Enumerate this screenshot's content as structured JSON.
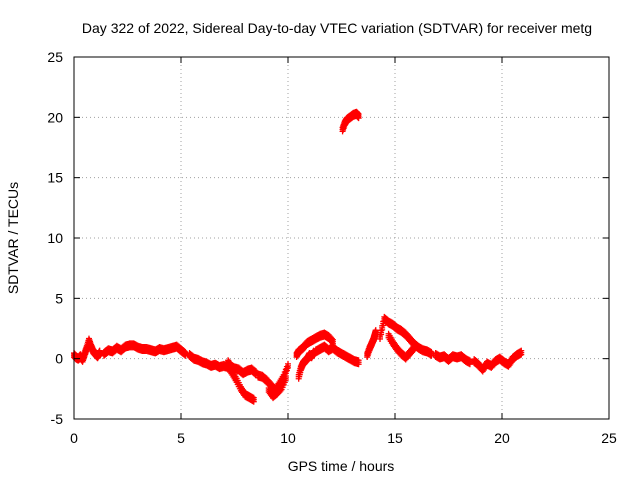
{
  "chart_data": {
    "type": "scatter",
    "title": "Day 322 of 2022, Sidereal Day-to-day VTEC variation (SDTVAR) for receiver metg",
    "xlabel": "GPS time / hours",
    "ylabel": "SDTVAR / TECUs",
    "xlim": [
      0,
      25
    ],
    "ylim": [
      -5,
      25
    ],
    "xticks": [
      "0",
      "5",
      "10",
      "15",
      "20",
      "25"
    ],
    "yticks": [
      "-5",
      "0",
      "5",
      "10",
      "15",
      "20",
      "25"
    ],
    "grid": true,
    "legend": null,
    "color": "#ff0000",
    "series": [
      {
        "name": "seg-0-1",
        "points": [
          [
            0.0,
            0.3
          ],
          [
            0.1,
            0.1
          ],
          [
            0.2,
            0.0
          ],
          [
            0.3,
            0.2
          ],
          [
            0.4,
            -0.1
          ],
          [
            0.5,
            0.4
          ],
          [
            0.6,
            0.9
          ],
          [
            0.7,
            1.5
          ],
          [
            0.8,
            1.0
          ],
          [
            0.9,
            0.6
          ],
          [
            1.0,
            0.4
          ],
          [
            1.1,
            0.2
          ],
          [
            1.2,
            0.5
          ]
        ]
      },
      {
        "name": "seg-1-5",
        "points": [
          [
            1.4,
            0.4
          ],
          [
            1.6,
            0.7
          ],
          [
            1.8,
            0.6
          ],
          [
            2.0,
            0.9
          ],
          [
            2.2,
            0.7
          ],
          [
            2.4,
            1.0
          ],
          [
            2.6,
            1.1
          ],
          [
            2.8,
            1.1
          ],
          [
            3.0,
            0.9
          ],
          [
            3.2,
            0.8
          ],
          [
            3.4,
            0.8
          ],
          [
            3.6,
            0.7
          ],
          [
            3.8,
            0.6
          ],
          [
            4.0,
            0.8
          ],
          [
            4.2,
            0.7
          ],
          [
            4.4,
            0.8
          ],
          [
            4.6,
            0.9
          ],
          [
            4.8,
            1.0
          ],
          [
            5.0,
            0.7
          ],
          [
            5.2,
            0.4
          ]
        ]
      },
      {
        "name": "seg-5-8",
        "points": [
          [
            5.4,
            0.3
          ],
          [
            5.6,
            0.0
          ],
          [
            5.8,
            -0.1
          ],
          [
            6.0,
            -0.3
          ],
          [
            6.2,
            -0.4
          ],
          [
            6.4,
            -0.6
          ],
          [
            6.6,
            -0.5
          ],
          [
            6.8,
            -0.7
          ],
          [
            7.0,
            -0.6
          ],
          [
            7.2,
            -0.7
          ],
          [
            7.4,
            -1.2
          ],
          [
            7.6,
            -1.8
          ],
          [
            7.8,
            -2.5
          ],
          [
            8.0,
            -3.0
          ],
          [
            8.2,
            -3.2
          ],
          [
            8.4,
            -3.4
          ]
        ]
      },
      {
        "name": "seg-7-8-branch",
        "points": [
          [
            7.2,
            -0.3
          ],
          [
            7.3,
            -0.6
          ],
          [
            7.5,
            -0.8
          ],
          [
            7.7,
            -0.9
          ],
          [
            7.9,
            -1.2
          ],
          [
            8.1,
            -1.0
          ],
          [
            8.3,
            -0.9
          ],
          [
            8.5,
            -1.2
          ]
        ]
      },
      {
        "name": "seg-8-10",
        "points": [
          [
            8.6,
            -1.4
          ],
          [
            8.8,
            -1.5
          ],
          [
            9.0,
            -1.8
          ],
          [
            9.2,
            -2.2
          ],
          [
            9.4,
            -2.6
          ],
          [
            9.6,
            -2.1
          ],
          [
            9.8,
            -1.5
          ],
          [
            10.0,
            -0.6
          ]
        ]
      },
      {
        "name": "seg-9-10-branch",
        "points": [
          [
            9.1,
            -2.6
          ],
          [
            9.3,
            -3.1
          ],
          [
            9.5,
            -2.8
          ],
          [
            9.7,
            -2.4
          ],
          [
            9.9,
            -1.6
          ]
        ]
      },
      {
        "name": "seg-10-11",
        "points": [
          [
            10.5,
            -1.5
          ],
          [
            10.6,
            -0.8
          ],
          [
            10.7,
            -0.4
          ],
          [
            10.8,
            -0.2
          ],
          [
            10.9,
            0.0
          ],
          [
            11.0,
            0.3
          ],
          [
            11.1,
            0.2
          ],
          [
            11.2,
            0.5
          ]
        ]
      },
      {
        "name": "seg-10-11-upper",
        "points": [
          [
            10.4,
            0.3
          ],
          [
            10.5,
            0.6
          ],
          [
            10.7,
            0.9
          ],
          [
            10.9,
            1.3
          ],
          [
            11.1,
            1.5
          ],
          [
            11.3,
            1.7
          ],
          [
            11.5,
            1.9
          ],
          [
            11.7,
            2.0
          ],
          [
            11.9,
            1.8
          ],
          [
            12.1,
            1.4
          ]
        ]
      },
      {
        "name": "seg-11-13",
        "points": [
          [
            11.3,
            0.6
          ],
          [
            11.5,
            0.8
          ],
          [
            11.7,
            1.0
          ],
          [
            11.9,
            0.7
          ],
          [
            12.1,
            0.9
          ],
          [
            12.3,
            0.6
          ],
          [
            12.5,
            0.4
          ],
          [
            12.7,
            0.2
          ],
          [
            12.9,
            0.0
          ],
          [
            13.1,
            -0.2
          ],
          [
            13.3,
            -0.3
          ]
        ]
      },
      {
        "name": "seg-12-13-high",
        "points": [
          [
            12.55,
            19.0
          ],
          [
            12.65,
            19.5
          ],
          [
            12.75,
            19.8
          ],
          [
            12.9,
            20.0
          ],
          [
            13.05,
            20.2
          ],
          [
            13.2,
            20.3
          ],
          [
            13.3,
            20.1
          ]
        ]
      },
      {
        "name": "seg-13-14",
        "points": [
          [
            13.7,
            0.3
          ],
          [
            13.8,
            0.8
          ],
          [
            13.9,
            1.2
          ],
          [
            14.0,
            1.6
          ],
          [
            14.05,
            1.9
          ],
          [
            14.1,
            2.2
          ]
        ]
      },
      {
        "name": "seg-14-17",
        "points": [
          [
            14.3,
            1.8
          ],
          [
            14.5,
            3.3
          ],
          [
            14.7,
            3.0
          ],
          [
            14.9,
            2.8
          ],
          [
            15.1,
            2.5
          ],
          [
            15.3,
            2.3
          ],
          [
            15.5,
            2.0
          ],
          [
            15.7,
            1.6
          ],
          [
            15.9,
            1.2
          ],
          [
            16.1,
            0.9
          ],
          [
            16.3,
            0.7
          ],
          [
            16.5,
            0.6
          ],
          [
            16.7,
            0.4
          ]
        ]
      },
      {
        "name": "seg-14-16-branch",
        "points": [
          [
            14.7,
            1.9
          ],
          [
            14.9,
            1.3
          ],
          [
            15.1,
            0.8
          ],
          [
            15.3,
            0.4
          ],
          [
            15.5,
            0.1
          ],
          [
            15.7,
            0.5
          ],
          [
            15.9,
            0.9
          ]
        ]
      },
      {
        "name": "seg-17-18",
        "points": [
          [
            16.9,
            0.3
          ],
          [
            17.1,
            0.1
          ],
          [
            17.3,
            0.2
          ],
          [
            17.5,
            -0.1
          ],
          [
            17.7,
            0.2
          ],
          [
            17.9,
            0.1
          ],
          [
            18.1,
            0.2
          ],
          [
            18.3,
            -0.1
          ],
          [
            18.5,
            -0.3
          ]
        ]
      },
      {
        "name": "seg-19-21",
        "points": [
          [
            18.7,
            -0.2
          ],
          [
            18.9,
            -0.5
          ],
          [
            19.1,
            -0.9
          ],
          [
            19.3,
            -0.4
          ],
          [
            19.5,
            -0.6
          ],
          [
            19.7,
            -0.2
          ],
          [
            19.9,
            0.0
          ],
          [
            20.1,
            -0.3
          ],
          [
            20.3,
            -0.5
          ],
          [
            20.5,
            0.0
          ],
          [
            20.7,
            0.3
          ],
          [
            20.9,
            0.5
          ]
        ]
      }
    ]
  }
}
